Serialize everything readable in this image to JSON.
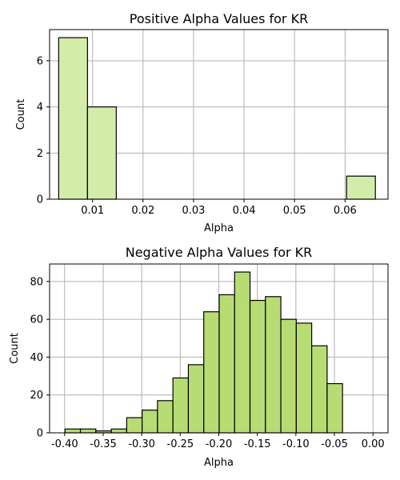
{
  "chart_data": [
    {
      "type": "bar",
      "title": "Positive Alpha Values for KR",
      "xlabel": "Alpha",
      "ylabel": "Count",
      "color": "#d4ecaa",
      "xlim": [
        0.0015,
        0.0685
      ],
      "ylim": [
        0,
        7.35
      ],
      "xticks": [
        0.01,
        0.02,
        0.03,
        0.04,
        0.05,
        0.06
      ],
      "xtick_labels": [
        "0.01",
        "0.02",
        "0.03",
        "0.04",
        "0.05",
        "0.06"
      ],
      "yticks": [
        0,
        2,
        4,
        6
      ],
      "ytick_labels": [
        "0",
        "2",
        "4",
        "6"
      ],
      "grid": true,
      "bins": [
        {
          "x0": 0.0033,
          "x1": 0.009,
          "count": 7
        },
        {
          "x0": 0.009,
          "x1": 0.0147,
          "count": 4
        },
        {
          "x0": 0.0147,
          "x1": 0.0204,
          "count": 0
        },
        {
          "x0": 0.0204,
          "x1": 0.0261,
          "count": 0
        },
        {
          "x0": 0.0261,
          "x1": 0.0318,
          "count": 0
        },
        {
          "x0": 0.0318,
          "x1": 0.0375,
          "count": 0
        },
        {
          "x0": 0.0375,
          "x1": 0.0432,
          "count": 0
        },
        {
          "x0": 0.0432,
          "x1": 0.0489,
          "count": 0
        },
        {
          "x0": 0.0489,
          "x1": 0.0546,
          "count": 0
        },
        {
          "x0": 0.0546,
          "x1": 0.0603,
          "count": 0
        },
        {
          "x0": 0.0603,
          "x1": 0.066,
          "count": 1
        }
      ]
    },
    {
      "type": "bar",
      "title": "Negative Alpha Values for KR",
      "xlabel": "Alpha",
      "ylabel": "Count",
      "color": "#b8dc74",
      "xlim": [
        -0.4195,
        0.0195
      ],
      "ylim": [
        0,
        89.25
      ],
      "xticks": [
        -0.4,
        -0.35,
        -0.3,
        -0.25,
        -0.2,
        -0.15,
        -0.1,
        -0.05,
        0.0
      ],
      "xtick_labels": [
        "-0.40",
        "-0.35",
        "-0.30",
        "-0.25",
        "-0.20",
        "-0.15",
        "-0.10",
        "-0.05",
        "0.00"
      ],
      "yticks": [
        0,
        20,
        40,
        60,
        80
      ],
      "ytick_labels": [
        "0",
        "20",
        "40",
        "60",
        "80"
      ],
      "grid": true,
      "bins": [
        {
          "x0": -0.3995,
          "x1": -0.3795,
          "count": 2
        },
        {
          "x0": -0.3795,
          "x1": -0.3595,
          "count": 2
        },
        {
          "x0": -0.3595,
          "x1": -0.3395,
          "count": 1
        },
        {
          "x0": -0.3395,
          "x1": -0.3195,
          "count": 2
        },
        {
          "x0": -0.3195,
          "x1": -0.2995,
          "count": 8
        },
        {
          "x0": -0.2995,
          "x1": -0.2795,
          "count": 12
        },
        {
          "x0": -0.2795,
          "x1": -0.2595,
          "count": 17
        },
        {
          "x0": -0.2595,
          "x1": -0.2395,
          "count": 29
        },
        {
          "x0": -0.2395,
          "x1": -0.2195,
          "count": 36
        },
        {
          "x0": -0.2195,
          "x1": -0.1995,
          "count": 64
        },
        {
          "x0": -0.1995,
          "x1": -0.1795,
          "count": 73
        },
        {
          "x0": -0.1795,
          "x1": -0.1595,
          "count": 85
        },
        {
          "x0": -0.1595,
          "x1": -0.1395,
          "count": 70
        },
        {
          "x0": -0.1395,
          "x1": -0.1195,
          "count": 72
        },
        {
          "x0": -0.1195,
          "x1": -0.0995,
          "count": 60
        },
        {
          "x0": -0.0995,
          "x1": -0.0795,
          "count": 58
        },
        {
          "x0": -0.0795,
          "x1": -0.0595,
          "count": 46
        },
        {
          "x0": -0.0595,
          "x1": -0.0395,
          "count": 26
        }
      ]
    }
  ]
}
